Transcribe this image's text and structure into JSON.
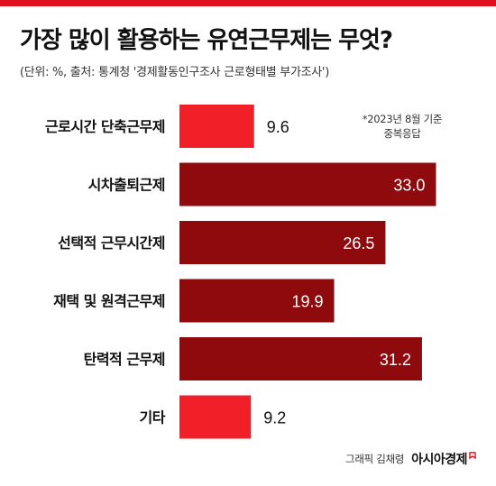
{
  "header": {
    "title": "가장 많이 활용하는 유연근무제는 무엇?",
    "subtitle": "(단위: %, 출처: 통계청 '경제활동인구조사 근로형태별 부가조사')"
  },
  "note": {
    "line1": "*2023년 8월 기준",
    "line2": "중복응답"
  },
  "footer": {
    "credit": "그래픽 김채령",
    "brand": "아시아경제"
  },
  "colors": {
    "accent_light": "#f01f28",
    "accent_dark": "#8e0a0c",
    "label_on_bar": "#ffffff",
    "label_off_bar": "#111111"
  },
  "chart_data": {
    "type": "bar",
    "orientation": "horizontal",
    "categories": [
      "근로시간 단축근무제",
      "시차출퇴근제",
      "선택적 근무시간제",
      "재택 및 원격근무제",
      "탄력적 근무제",
      "기타"
    ],
    "values": [
      9.6,
      33.0,
      26.5,
      19.9,
      31.2,
      9.2
    ],
    "value_labels": [
      "9.6",
      "33.0",
      "26.5",
      "19.9",
      "31.2",
      "9.2"
    ],
    "title": "가장 많이 활용하는 유연근무제는 무엇?",
    "xlabel": "",
    "ylabel": "",
    "xlim": [
      0,
      36
    ],
    "grid": false,
    "legend": "none"
  }
}
